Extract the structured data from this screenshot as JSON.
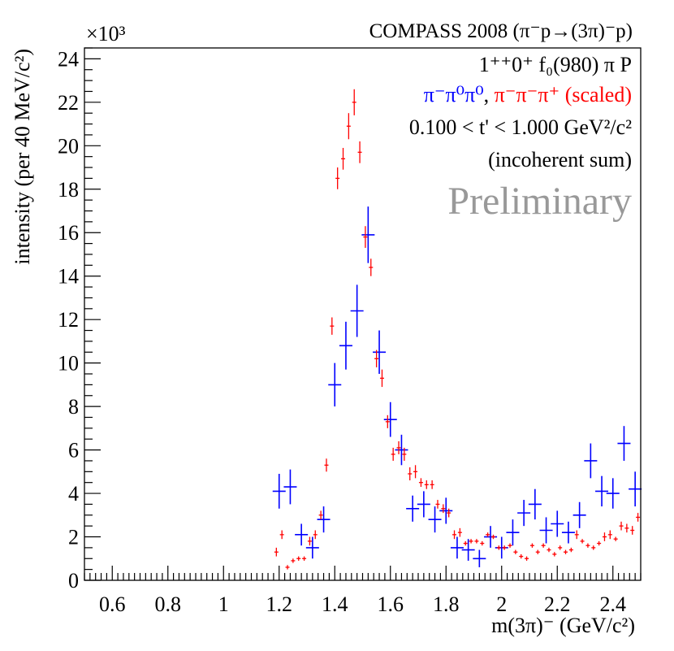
{
  "chart_data": {
    "type": "scatter",
    "title": "COMPASS 2008 (π⁻p→(3π)⁻p)",
    "exponent_label": "×10³",
    "ylabel": "intensity (per 40 MeV/c²)",
    "xlabel": "m(3π)⁻ (GeV/c²)",
    "xlim": [
      0.5,
      2.5
    ],
    "ylim": [
      0,
      24.5
    ],
    "x_ticks": [
      0.6,
      0.8,
      1,
      1.2,
      1.4,
      1.6,
      1.8,
      2,
      2.2,
      2.4
    ],
    "x_tick_labels": [
      "0.6",
      "0.8",
      "1",
      "1.2",
      "1.4",
      "1.6",
      "1.8",
      "2",
      "2.2",
      "2.4"
    ],
    "y_ticks": [
      0,
      2,
      4,
      6,
      8,
      10,
      12,
      14,
      16,
      18,
      20,
      22,
      24
    ],
    "y_tick_labels": [
      "0",
      "2",
      "4",
      "6",
      "8",
      "10",
      "12",
      "14",
      "16",
      "18",
      "20",
      "22",
      "24"
    ],
    "annotations": {
      "wave": "1⁺⁺0⁺ f₀(980) π P",
      "legend_neutral": "π⁻π⁰π⁰",
      "legend_sep": ", ",
      "legend_charged": "π⁻π⁻π⁺ (scaled)",
      "tbin": "0.100 < t' < 1.000 GeV²/c²",
      "sum": "(incoherent sum)",
      "preliminary": "Preliminary"
    },
    "colors": {
      "neutral": "#0000ff",
      "charged": "#ff0000",
      "preliminary": "#999999"
    },
    "series": [
      {
        "name": "π⁻π⁰π⁰",
        "color": "#0000ff",
        "x": [
          1.2,
          1.24,
          1.28,
          1.32,
          1.36,
          1.4,
          1.44,
          1.48,
          1.52,
          1.56,
          1.6,
          1.64,
          1.68,
          1.72,
          1.76,
          1.8,
          1.84,
          1.88,
          1.92,
          1.96,
          2.0,
          2.04,
          2.08,
          2.12,
          2.16,
          2.2,
          2.24,
          2.28,
          2.32,
          2.36,
          2.4,
          2.44,
          2.48
        ],
        "y": [
          4.1,
          4.3,
          2.1,
          1.5,
          2.8,
          9.0,
          10.8,
          12.4,
          15.9,
          10.5,
          7.4,
          6.0,
          3.3,
          3.5,
          2.8,
          3.2,
          1.5,
          1.4,
          1.0,
          2.0,
          1.5,
          2.2,
          3.1,
          3.5,
          2.3,
          2.6,
          2.2,
          3.0,
          5.5,
          4.1,
          4.0,
          6.3,
          4.2
        ],
        "err": [
          0.8,
          0.8,
          0.5,
          0.5,
          0.6,
          1.0,
          1.1,
          1.2,
          1.3,
          1.0,
          0.8,
          0.7,
          0.6,
          0.6,
          0.6,
          0.6,
          0.5,
          0.5,
          0.4,
          0.5,
          0.5,
          0.6,
          0.6,
          0.7,
          0.6,
          0.6,
          0.5,
          0.6,
          0.8,
          0.7,
          0.7,
          0.8,
          0.8
        ]
      },
      {
        "name": "π⁻π⁻π⁺ (scaled)",
        "color": "#ff0000",
        "x": [
          1.19,
          1.21,
          1.23,
          1.25,
          1.27,
          1.29,
          1.31,
          1.33,
          1.35,
          1.37,
          1.39,
          1.41,
          1.43,
          1.45,
          1.47,
          1.49,
          1.51,
          1.53,
          1.55,
          1.57,
          1.59,
          1.61,
          1.63,
          1.65,
          1.67,
          1.69,
          1.71,
          1.73,
          1.75,
          1.77,
          1.79,
          1.81,
          1.83,
          1.85,
          1.87,
          1.89,
          1.91,
          1.93,
          1.95,
          1.97,
          1.99,
          2.01,
          2.03,
          2.05,
          2.07,
          2.09,
          2.11,
          2.13,
          2.15,
          2.17,
          2.19,
          2.21,
          2.23,
          2.25,
          2.27,
          2.29,
          2.31,
          2.33,
          2.35,
          2.37,
          2.39,
          2.41,
          2.43,
          2.45,
          2.47,
          2.49
        ],
        "y": [
          1.3,
          2.1,
          0.6,
          0.9,
          1.0,
          1.0,
          1.8,
          2.1,
          3.0,
          5.3,
          11.7,
          18.5,
          19.4,
          20.9,
          22.0,
          19.7,
          15.8,
          14.4,
          10.2,
          9.3,
          7.3,
          5.8,
          6.1,
          5.8,
          4.9,
          5.0,
          4.5,
          4.4,
          4.4,
          3.5,
          3.3,
          3.1,
          2.1,
          2.2,
          1.7,
          1.8,
          1.8,
          1.7,
          2.1,
          2.0,
          1.5,
          1.5,
          1.6,
          1.3,
          1.1,
          1.0,
          1.6,
          1.3,
          1.6,
          1.4,
          1.2,
          1.5,
          1.3,
          1.4,
          2.1,
          1.8,
          1.6,
          1.5,
          1.7,
          2.0,
          2.1,
          1.9,
          2.5,
          2.4,
          2.3,
          2.9
        ],
        "err": [
          0.2,
          0.2,
          0.1,
          0.1,
          0.1,
          0.1,
          0.2,
          0.2,
          0.2,
          0.3,
          0.4,
          0.5,
          0.5,
          0.6,
          0.6,
          0.5,
          0.5,
          0.4,
          0.4,
          0.4,
          0.3,
          0.3,
          0.3,
          0.3,
          0.3,
          0.3,
          0.2,
          0.2,
          0.2,
          0.2,
          0.2,
          0.2,
          0.2,
          0.2,
          0.1,
          0.1,
          0.1,
          0.1,
          0.1,
          0.1,
          0.1,
          0.1,
          0.1,
          0.1,
          0.1,
          0.1,
          0.1,
          0.1,
          0.1,
          0.1,
          0.1,
          0.1,
          0.1,
          0.1,
          0.2,
          0.1,
          0.1,
          0.1,
          0.1,
          0.2,
          0.2,
          0.1,
          0.2,
          0.2,
          0.2,
          0.2
        ]
      }
    ]
  }
}
